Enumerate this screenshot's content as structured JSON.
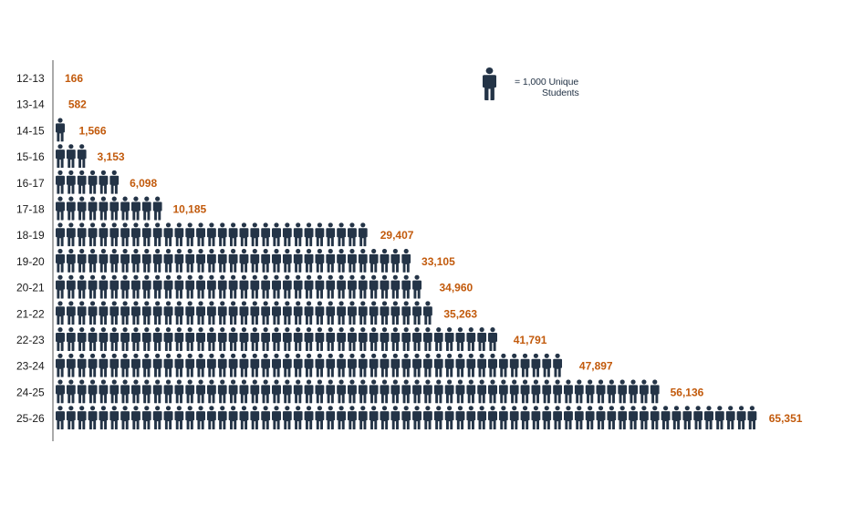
{
  "chart_data": {
    "type": "bar",
    "categories": [
      "12-13",
      "13-14",
      "14-15",
      "15-16",
      "16-17",
      "17-18",
      "18-19",
      "19-20",
      "20-21",
      "21-22",
      "22-23",
      "23-24",
      "24-25",
      "25-26"
    ],
    "values": [
      166,
      582,
      1566,
      3153,
      6098,
      10185,
      29407,
      33105,
      34960,
      35263,
      41791,
      47897,
      56136,
      65351
    ],
    "value_labels": [
      "166",
      "582",
      "1,566",
      "3,153",
      "6,098",
      "10,185",
      "29,407",
      "33,105",
      "34,960",
      "35,263",
      "41,791",
      "47,897",
      "56,136",
      "65,351"
    ],
    "orientation": "horizontal",
    "unit_per_icon": 1000,
    "legend": {
      "line1": "= 1,000 Unique",
      "line2": "Students",
      "placement": "top-right"
    },
    "colors": {
      "icon": "#243447",
      "value_label": "#c25a0c",
      "category_label": "#1a1a1a",
      "axis": "#555555"
    }
  }
}
